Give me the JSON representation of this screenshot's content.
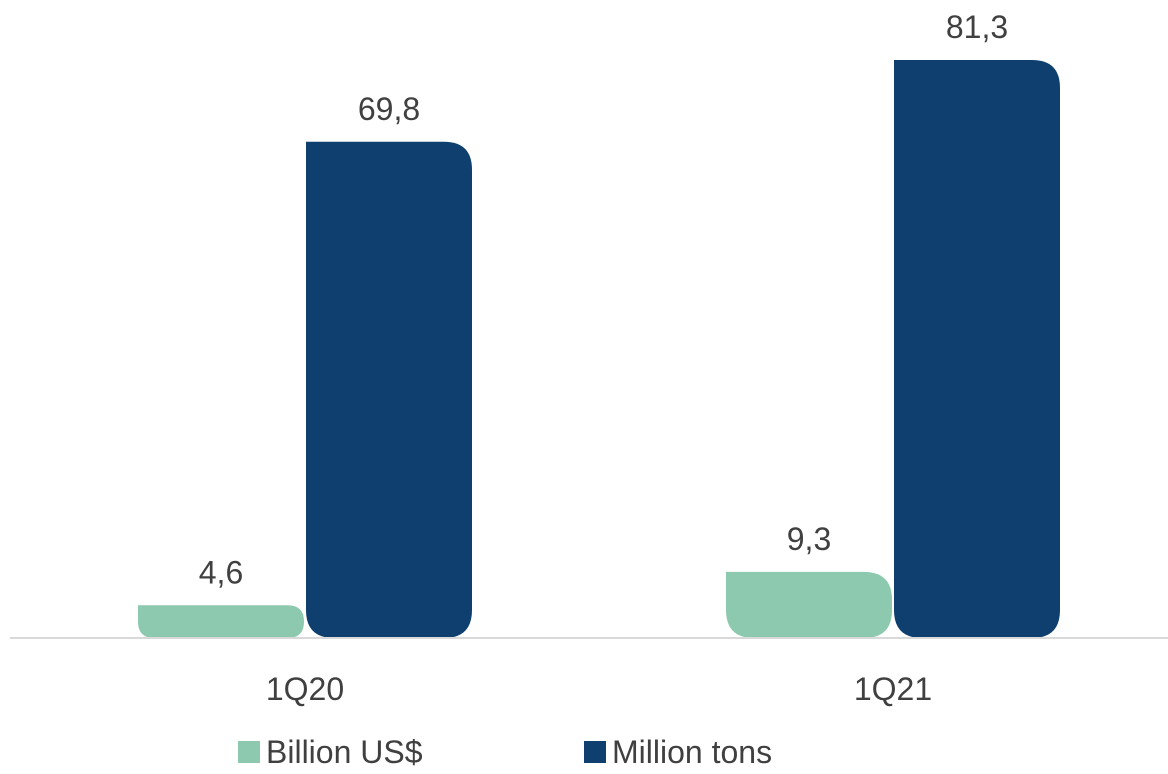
{
  "chart_data": {
    "type": "bar",
    "categories": [
      "1Q20",
      "1Q21"
    ],
    "series": [
      {
        "name": "Billion US$",
        "values": [
          4.6,
          9.3
        ],
        "labels": [
          "4,6",
          "9,3"
        ],
        "color": "#8cc9ae"
      },
      {
        "name": "Million tons",
        "values": [
          69.8,
          81.3
        ],
        "labels": [
          "69,8",
          "81,3"
        ],
        "color": "#0e3f6e"
      }
    ],
    "title": "",
    "xlabel": "",
    "ylabel": "",
    "ylim": [
      0,
      81.3
    ],
    "grid": false,
    "legend_position": "bottom"
  }
}
